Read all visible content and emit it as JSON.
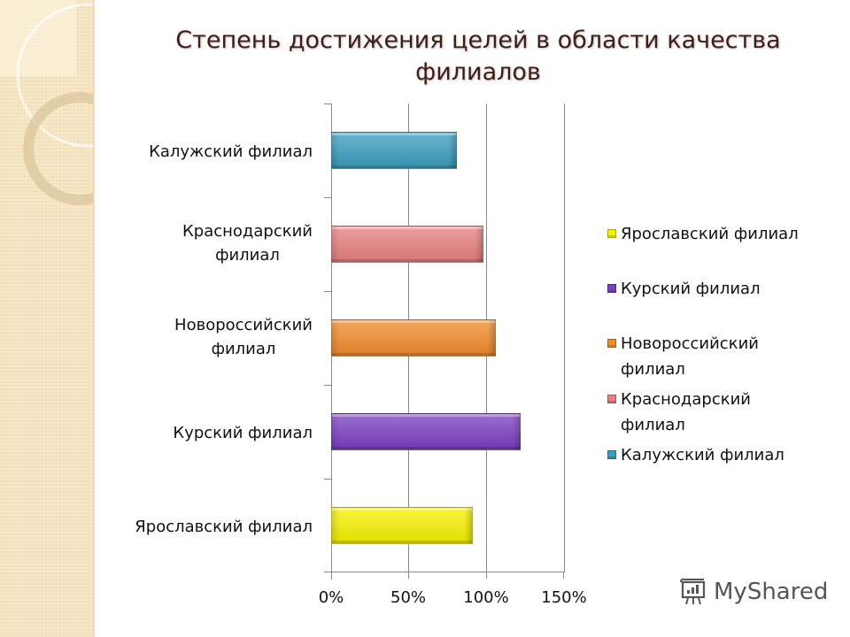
{
  "title": "Степень достижения целей в области качества филиалов",
  "title_lines": [
    "Степень достижения целей в области качества",
    "филиалов"
  ],
  "watermark": "MyShared",
  "chart_data": {
    "type": "bar",
    "orientation": "horizontal",
    "title": "Степень достижения целей в области качества филиалов",
    "xlabel": "",
    "ylabel": "",
    "categories": [
      "Ярославский филиал",
      "Курский филиал",
      "Новороссийский филиал",
      "Краснодарский филиал",
      "Калужский филиал"
    ],
    "values": [
      0.91,
      1.22,
      1.06,
      0.98,
      0.81
    ],
    "colors": [
      "#f6f000",
      "#7a3fc0",
      "#f08a2c",
      "#e77f7f",
      "#3a9cbd"
    ],
    "xlim": [
      0,
      1.5
    ],
    "xticks": [
      "0%",
      "50%",
      "100%",
      "150%"
    ],
    "grid": true,
    "legend_position": "right",
    "legend": [
      "Ярославский филиал",
      "Курский филиал",
      "Новороссийский филиал",
      "Краснодарский филиал",
      "Калужский филиал"
    ]
  },
  "axis": {
    "x_ticks": [
      "0%",
      "50%",
      "100%",
      "150%"
    ]
  },
  "categories_display": [
    {
      "line1": "Калужский филиал",
      "line2": ""
    },
    {
      "line1": "Краснодарский",
      "line2": "филиал"
    },
    {
      "line1": "Новороссийский",
      "line2": "филиал"
    },
    {
      "line1": "Курский филиал",
      "line2": ""
    },
    {
      "line1": "Ярославский филиал",
      "line2": ""
    }
  ],
  "legend": [
    {
      "line1": "Ярославский филиал",
      "line2": "",
      "color": "#f6f000"
    },
    {
      "line1": "Курский филиал",
      "line2": "",
      "color": "#7a3fc0"
    },
    {
      "line1": "Новороссийский",
      "line2": "филиал",
      "color": "#f08a2c"
    },
    {
      "line1": "Краснодарский",
      "line2": "филиал",
      "color": "#e77f7f"
    },
    {
      "line1": "Калужский филиал",
      "line2": "",
      "color": "#3a9cbd"
    }
  ]
}
